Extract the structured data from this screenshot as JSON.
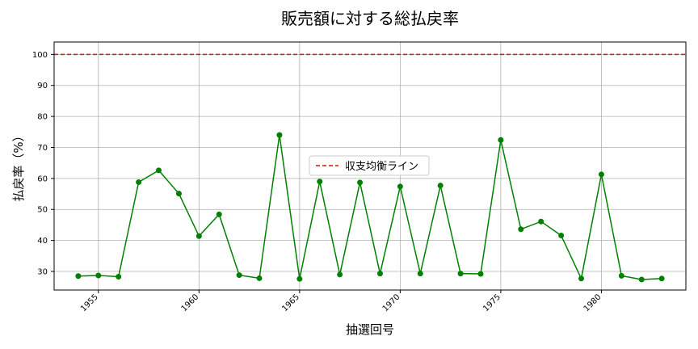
{
  "chart_data": {
    "type": "line",
    "title": "販売額に対する総払戻率",
    "xlabel": "抽選回号",
    "ylabel": "払戻率（%）",
    "xlim": [
      1952.8,
      1984.2
    ],
    "ylim": [
      24,
      104
    ],
    "xticks": [
      1955,
      1960,
      1965,
      1970,
      1975,
      1980
    ],
    "yticks": [
      30,
      40,
      50,
      60,
      70,
      80,
      90,
      100
    ],
    "grid": true,
    "series": [
      {
        "color": "#008000",
        "x": [
          1954,
          1955,
          1956,
          1957,
          1958,
          1959,
          1960,
          1961,
          1962,
          1963,
          1964,
          1965,
          1966,
          1967,
          1968,
          1969,
          1970,
          1971,
          1972,
          1973,
          1974,
          1975,
          1976,
          1977,
          1978,
          1979,
          1980,
          1981,
          1982,
          1983
        ],
        "values": [
          28.5,
          28.7,
          28.3,
          58.8,
          62.6,
          55.1,
          41.4,
          48.4,
          28.8,
          27.8,
          74.0,
          27.6,
          59.0,
          29.0,
          58.7,
          29.3,
          57.4,
          29.3,
          57.7,
          29.3,
          29.2,
          72.4,
          43.6,
          46.1,
          41.6,
          27.7,
          61.3,
          28.6,
          27.4,
          27.7
        ]
      }
    ],
    "reference_lines": [
      {
        "name": "収支均衡ライン",
        "y": 100,
        "color": "#ff0000",
        "style": "dashed"
      }
    ],
    "legend": {
      "position": "center",
      "entries": [
        "収支均衡ライン"
      ]
    }
  }
}
